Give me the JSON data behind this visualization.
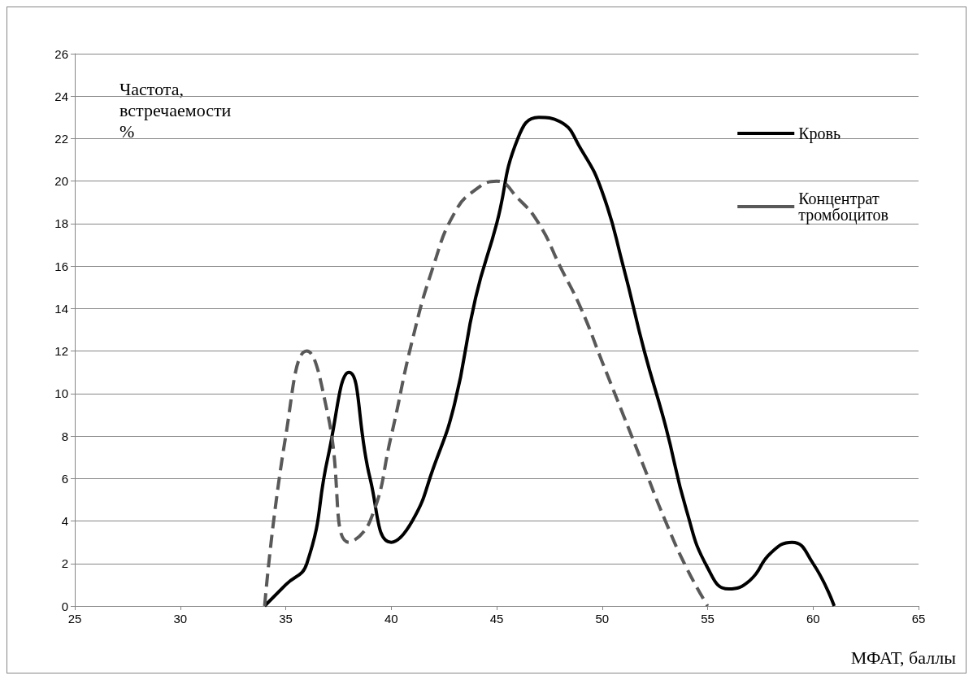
{
  "chart_data": {
    "type": "line",
    "ylabel": "Частота, встречаемости %",
    "xlabel": "МФАТ, баллы",
    "xlim": [
      25,
      65
    ],
    "xticks": [
      25,
      30,
      35,
      40,
      45,
      50,
      55,
      60,
      65
    ],
    "ylim": [
      0,
      26
    ],
    "yticks": [
      0,
      2,
      4,
      6,
      8,
      10,
      12,
      14,
      16,
      18,
      20,
      22,
      24,
      26
    ],
    "grid": "y",
    "legend": "top right",
    "marker": "none",
    "series": [
      {
        "name": "Кровь",
        "color": "#000000",
        "line_style": "solid",
        "x": [
          34,
          35,
          36,
          37,
          38,
          39,
          40,
          41,
          42,
          43,
          44,
          45,
          46,
          47,
          48,
          49,
          50,
          51,
          52,
          53,
          54,
          55,
          56,
          57,
          58,
          59,
          60,
          61
        ],
        "values": [
          0,
          1,
          2,
          7,
          11,
          6,
          3,
          4,
          6.5,
          9.5,
          14.5,
          18,
          22,
          23,
          22.8,
          21.5,
          19.5,
          16,
          12,
          8.5,
          4.5,
          1.8,
          0.8,
          1.2,
          2.5,
          3,
          2,
          0
        ]
      },
      {
        "name": "Концентрат тромбоцитов",
        "color": "#595959",
        "line_style": "dashed",
        "x": [
          34,
          35,
          36,
          37,
          38,
          39,
          40,
          41,
          42,
          43,
          44,
          45,
          46,
          47,
          48,
          49,
          50,
          51,
          52,
          53,
          54,
          55
        ],
        "values": [
          0,
          8,
          12,
          9,
          3,
          4,
          8,
          12.5,
          16,
          18.5,
          19.6,
          20,
          19.2,
          18,
          16,
          14,
          11.5,
          9,
          6.5,
          4,
          1.8,
          0
        ]
      }
    ]
  }
}
